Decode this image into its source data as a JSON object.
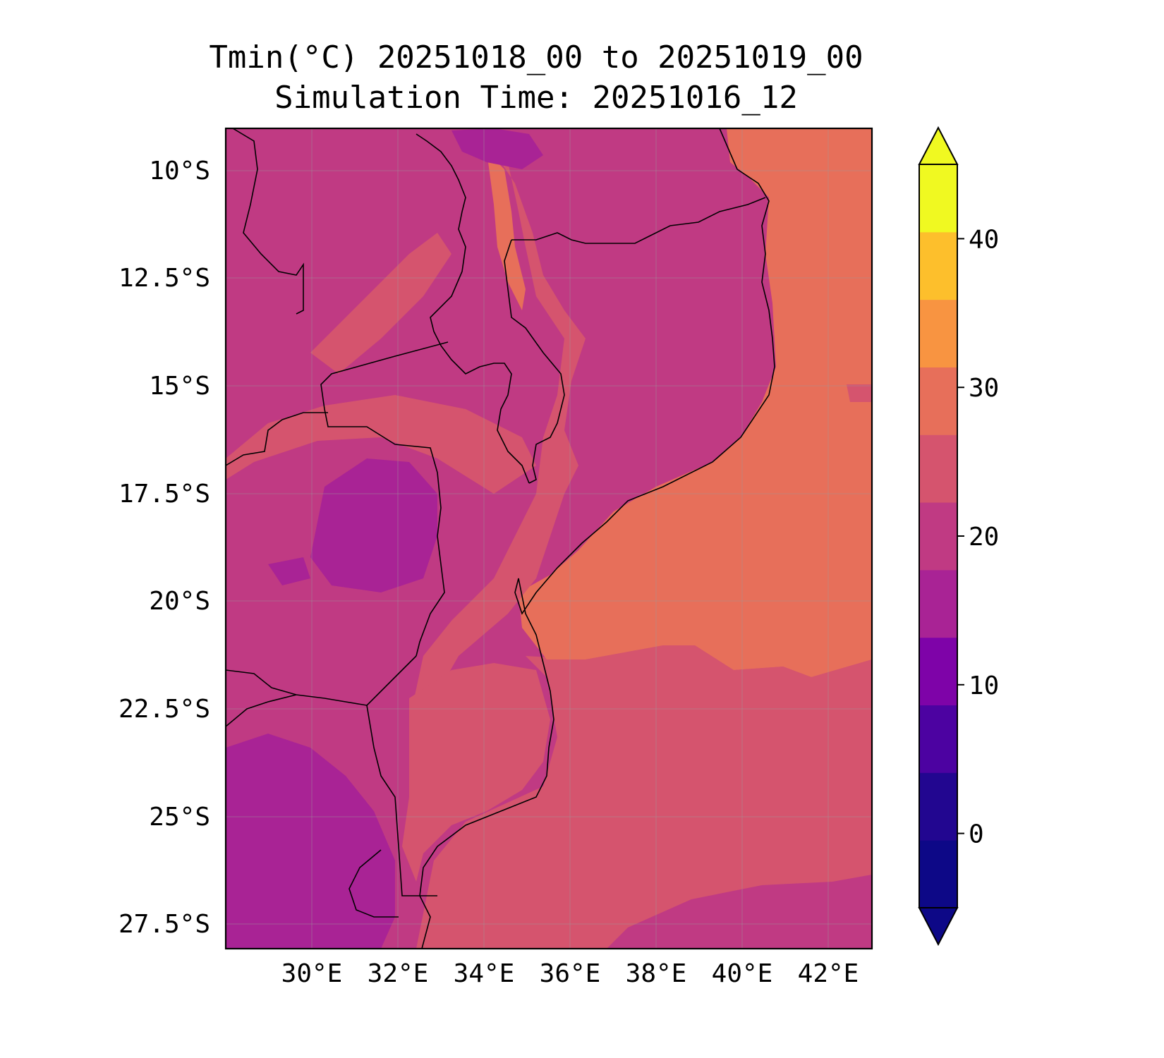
{
  "title": "Tmin(°C) 20251018_00 to 20251019_00",
  "subtitle": "Simulation Time: 20251016_12",
  "map": {
    "region": "Mozambique / southeastern Africa",
    "lat_labels": [
      "10°S",
      "12.5°S",
      "15°S",
      "17.5°S",
      "20°S",
      "22.5°S",
      "25°S",
      "27.5°S"
    ],
    "lon_labels": [
      "30°E",
      "32°E",
      "34°E",
      "36°E",
      "38°E",
      "40°E",
      "42°E"
    ],
    "grid": true
  },
  "colorbar": {
    "ticks": [
      "0",
      "10",
      "20",
      "30",
      "40"
    ],
    "levels": [
      -5,
      0,
      5,
      10,
      15,
      20,
      25,
      30,
      35,
      40,
      45
    ],
    "colors": [
      "#0d0887",
      "#220690",
      "#4c02a1",
      "#7e03a8",
      "#a92395",
      "#c03a83",
      "#d5546e",
      "#e76f5a",
      "#f89441",
      "#fdbf2c",
      "#f0f921"
    ],
    "extend": "both"
  }
}
